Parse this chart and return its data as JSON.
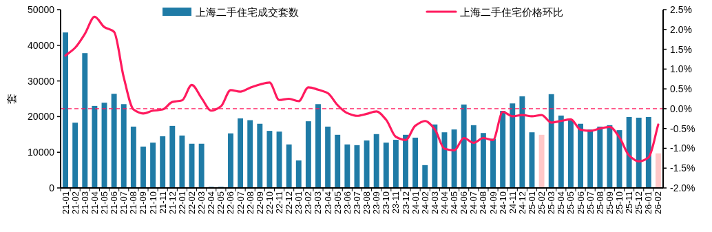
{
  "chart_data": {
    "type": "bar",
    "ylabel": "套",
    "categories": [
      "21-01",
      "21-02",
      "21-03",
      "21-04",
      "21-05",
      "21-06",
      "21-07",
      "21-08",
      "21-09",
      "21-10",
      "21-11",
      "21-12",
      "22-01",
      "22-02",
      "22-03",
      "22-04",
      "22-05",
      "22-06",
      "22-07",
      "22-08",
      "22-09",
      "22-10",
      "22-11",
      "22-12",
      "23-01",
      "23-02",
      "23-03",
      "23-04",
      "23-05",
      "23-06",
      "23-07",
      "23-08",
      "23-09",
      "23-10",
      "23-11",
      "23-12",
      "24-01",
      "24-02",
      "24-03",
      "24-04",
      "24-05",
      "24-06",
      "24-07",
      "24-08",
      "24-09",
      "24-10",
      "24-11",
      "24-12",
      "25-01",
      "25-02",
      "25-03",
      "25-04",
      "25-05",
      "25-06",
      "25-07",
      "25-08",
      "25-09",
      "25-10",
      "25-11",
      "25-12",
      "26-01",
      "26-02"
    ],
    "series": [
      {
        "name": "上海二手住宅成交套数",
        "color": "#1f7ba6",
        "colors": [
          "#1f7ba6",
          "#1f7ba6",
          "#1f7ba6",
          "#1f7ba6",
          "#1f7ba6",
          "#1f7ba6",
          "#1f7ba6",
          "#1f7ba6",
          "#1f7ba6",
          "#1f7ba6",
          "#1f7ba6",
          "#1f7ba6",
          "#1f7ba6",
          "#1f7ba6",
          "#1f7ba6",
          "#1f7ba6",
          "#1f7ba6",
          "#1f7ba6",
          "#1f7ba6",
          "#1f7ba6",
          "#1f7ba6",
          "#1f7ba6",
          "#1f7ba6",
          "#1f7ba6",
          "#1f7ba6",
          "#1f7ba6",
          "#1f7ba6",
          "#1f7ba6",
          "#1f7ba6",
          "#1f7ba6",
          "#1f7ba6",
          "#1f7ba6",
          "#1f7ba6",
          "#1f7ba6",
          "#1f7ba6",
          "#1f7ba6",
          "#1f7ba6",
          "#1f7ba6",
          "#1f7ba6",
          "#1f7ba6",
          "#1f7ba6",
          "#1f7ba6",
          "#1f7ba6",
          "#1f7ba6",
          "#1f7ba6",
          "#1f7ba6",
          "#1f7ba6",
          "#1f7ba6",
          "#1f7ba6",
          "#ffc8c8",
          "#1f7ba6",
          "#1f7ba6",
          "#1f7ba6",
          "#1f7ba6",
          "#1f7ba6",
          "#1f7ba6",
          "#1f7ba6",
          "#1f7ba6",
          "#1f7ba6",
          "#1f7ba6",
          "#1f7ba6",
          "#ffc8c8"
        ],
        "values": [
          43600,
          18300,
          37800,
          23000,
          23900,
          26400,
          23500,
          17200,
          11600,
          12700,
          14500,
          17400,
          14700,
          12400,
          12400,
          300,
          300,
          15300,
          19500,
          19000,
          18000,
          16000,
          15800,
          12200,
          7700,
          18700,
          23500,
          17200,
          14900,
          12200,
          12000,
          13300,
          15100,
          12700,
          13500,
          14900,
          14100,
          6400,
          17800,
          15600,
          16400,
          23400,
          17600,
          15400,
          13800,
          21600,
          23700,
          25700,
          15600,
          14900,
          26300,
          20300,
          18900,
          18000,
          16400,
          17200,
          17600,
          16200,
          19900,
          19700,
          19900,
          9700
        ]
      },
      {
        "name": "上海二手住宅价格环比",
        "type": "line",
        "axis": "y2",
        "color": "#ff1a5e",
        "values": [
          1.34,
          1.54,
          1.89,
          2.32,
          2.06,
          1.94,
          0.79,
          -0.02,
          -0.12,
          -0.05,
          -0.02,
          0.17,
          0.21,
          0.6,
          0.27,
          -0.05,
          0.06,
          0.47,
          0.43,
          0.53,
          0.61,
          0.66,
          0.22,
          0.25,
          0.19,
          0.54,
          0.48,
          0.39,
          0.09,
          -0.11,
          -0.18,
          -0.13,
          -0.07,
          -0.28,
          -0.71,
          -0.79,
          -0.43,
          -0.31,
          -0.52,
          -1.01,
          -1.05,
          -0.74,
          -0.86,
          -0.74,
          -0.79,
          -0.08,
          -0.19,
          -0.16,
          -0.19,
          -0.16,
          -0.35,
          -0.31,
          -0.27,
          -0.53,
          -0.56,
          -0.5,
          -0.46,
          -0.72,
          -1.18,
          -1.33,
          -1.23,
          -0.4
        ]
      }
    ],
    "ylim": [
      0,
      50000
    ],
    "yticks": [
      0,
      10000,
      20000,
      30000,
      40000,
      50000
    ],
    "y2lim": [
      -2,
      2.5
    ],
    "y2ticks": [
      {
        "value": -2,
        "label": "-2.0%"
      },
      {
        "value": -1.5,
        "label": "-1.5%"
      },
      {
        "value": -1,
        "label": "-1.0%"
      },
      {
        "value": -0.5,
        "label": "-0.5%"
      },
      {
        "value": 0,
        "label": "0.0%"
      },
      {
        "value": 0.5,
        "label": "0.5%"
      },
      {
        "value": 1,
        "label": "1.0%"
      },
      {
        "value": 1.5,
        "label": "1.5%"
      },
      {
        "value": 2,
        "label": "2.0%"
      },
      {
        "value": 2.5,
        "label": "2.5%"
      }
    ],
    "ref_lines": [
      {
        "axis": "y2",
        "value": 0,
        "color": "#ff1a5e",
        "line_style": "dashed"
      }
    ],
    "legend": "top",
    "grid": false
  }
}
